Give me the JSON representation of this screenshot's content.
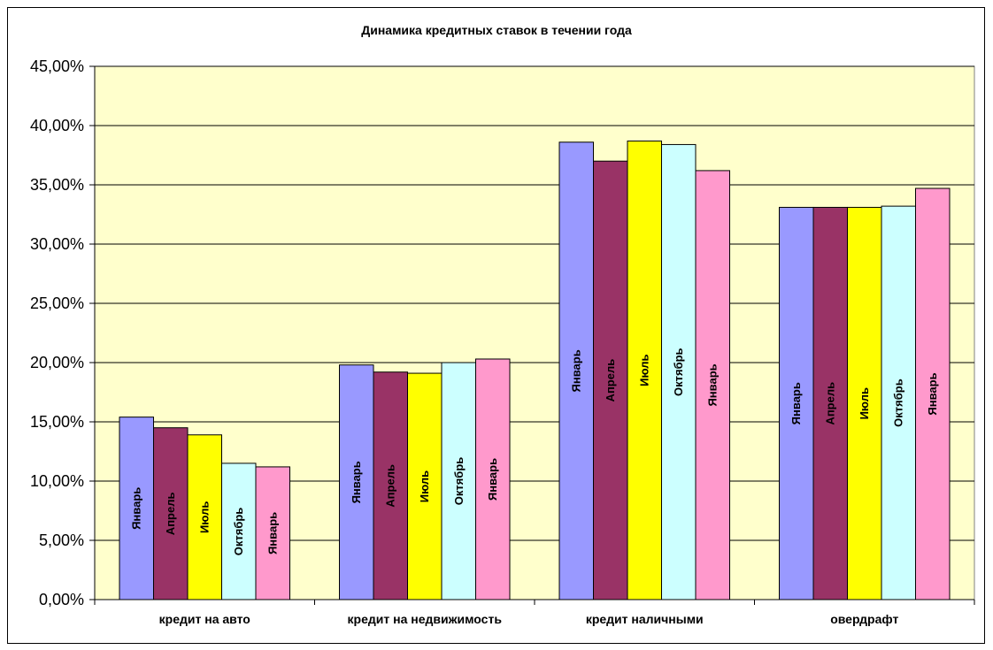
{
  "chart_data": {
    "type": "bar",
    "title": "Динамика кредитных ставок в течении года",
    "xlabel": "",
    "ylabel": "",
    "ylim": [
      0,
      45
    ],
    "y_ticks": [
      "0,00%",
      "5,00%",
      "10,00%",
      "15,00%",
      "20,00%",
      "25,00%",
      "30,00%",
      "35,00%",
      "40,00%",
      "45,00%"
    ],
    "categories": [
      "кредит на авто",
      "кредит на недвижимость",
      "кредит наличными",
      "овердрафт"
    ],
    "grid": true,
    "series": [
      {
        "name": "Январь",
        "color": "#9999ff",
        "values": [
          15.4,
          19.8,
          38.6,
          33.1
        ]
      },
      {
        "name": "Апрель",
        "color": "#993366",
        "values": [
          14.5,
          19.2,
          37.0,
          33.1
        ]
      },
      {
        "name": "Июль",
        "color": "#ffff00",
        "values": [
          13.9,
          19.1,
          38.7,
          33.1
        ]
      },
      {
        "name": "Октябрь",
        "color": "#ccffff",
        "values": [
          11.5,
          20.0,
          38.4,
          33.2
        ]
      },
      {
        "name": "Январь",
        "color": "#ff99cc",
        "values": [
          11.2,
          20.3,
          36.2,
          34.7
        ]
      }
    ],
    "plot_background": "#ffffcc"
  }
}
